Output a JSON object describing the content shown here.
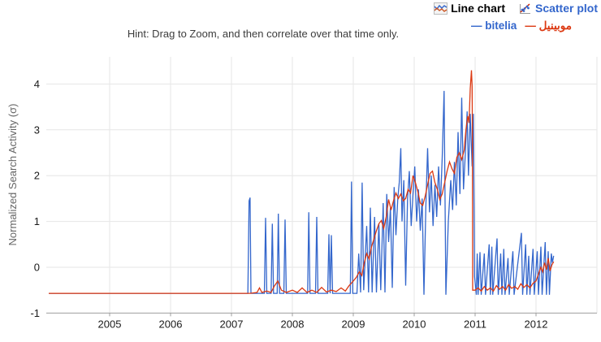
{
  "header": {
    "line_chart_label": "Line chart",
    "scatter_plot_label": "Scatter plot"
  },
  "legend": {
    "items": [
      {
        "dash": "—",
        "label": "bitelia",
        "color": "#3366cc"
      },
      {
        "dash": "—",
        "label": "موبينيل",
        "color": "#dc3912"
      }
    ]
  },
  "hint": "Hint: Drag to Zoom, and then correlate over that time only.",
  "colors": {
    "series_blue": "#3366cc",
    "series_red": "#dc3912",
    "gridline": "#e6e6e6",
    "axis_line": "#9e9e9e",
    "tick_label": "#1a1a1a",
    "axis_title": "#666666",
    "link_blue": "#3366cc",
    "hint_text": "#3c3c3c"
  },
  "chart_data": {
    "type": "line",
    "title": "",
    "xlabel": "",
    "ylabel": "Normalized Search Activity (σ)",
    "xlim": [
      2004,
      2013
    ],
    "ylim": [
      -1,
      4.6
    ],
    "xticks": [
      2005,
      2006,
      2007,
      2008,
      2009,
      2010,
      2011,
      2012
    ],
    "yticks": [
      -1,
      0,
      1,
      2,
      3,
      4
    ],
    "grid": true,
    "legend_position": "top-right",
    "series": [
      {
        "name": "bitelia",
        "color": "#3366cc",
        "points": [
          [
            2004.0,
            -0.57
          ],
          [
            2004.5,
            -0.57
          ],
          [
            2005.0,
            -0.57
          ],
          [
            2005.5,
            -0.57
          ],
          [
            2006.0,
            -0.57
          ],
          [
            2006.5,
            -0.57
          ],
          [
            2007.0,
            -0.57
          ],
          [
            2007.27,
            -0.57
          ],
          [
            2007.29,
            1.45
          ],
          [
            2007.305,
            1.52
          ],
          [
            2007.32,
            -0.57
          ],
          [
            2007.54,
            -0.57
          ],
          [
            2007.56,
            1.08
          ],
          [
            2007.58,
            -0.57
          ],
          [
            2007.65,
            -0.57
          ],
          [
            2007.67,
            0.95
          ],
          [
            2007.69,
            -0.57
          ],
          [
            2007.75,
            -0.57
          ],
          [
            2007.77,
            1.17
          ],
          [
            2007.79,
            -0.57
          ],
          [
            2007.86,
            -0.57
          ],
          [
            2007.88,
            1.04
          ],
          [
            2007.9,
            -0.57
          ],
          [
            2008.25,
            -0.57
          ],
          [
            2008.27,
            1.2
          ],
          [
            2008.29,
            -0.57
          ],
          [
            2008.38,
            -0.57
          ],
          [
            2008.4,
            1.1
          ],
          [
            2008.42,
            -0.57
          ],
          [
            2008.58,
            -0.57
          ],
          [
            2008.6,
            0.72
          ],
          [
            2008.62,
            -0.57
          ],
          [
            2008.64,
            0.7
          ],
          [
            2008.66,
            -0.57
          ],
          [
            2008.95,
            -0.57
          ],
          [
            2008.97,
            1.87
          ],
          [
            2008.99,
            -0.57
          ],
          [
            2009.06,
            -0.57
          ],
          [
            2009.09,
            0.3
          ],
          [
            2009.12,
            -0.55
          ],
          [
            2009.145,
            1.85
          ],
          [
            2009.17,
            -0.5
          ],
          [
            2009.22,
            0.9
          ],
          [
            2009.25,
            -0.55
          ],
          [
            2009.28,
            1.3
          ],
          [
            2009.31,
            -0.55
          ],
          [
            2009.35,
            1.1
          ],
          [
            2009.38,
            -0.55
          ],
          [
            2009.42,
            0.95
          ],
          [
            2009.45,
            -0.5
          ],
          [
            2009.49,
            1.4
          ],
          [
            2009.52,
            -0.55
          ],
          [
            2009.55,
            1.6
          ],
          [
            2009.58,
            0.55
          ],
          [
            2009.61,
            1.3
          ],
          [
            2009.64,
            -0.45
          ],
          [
            2009.67,
            1.75
          ],
          [
            2009.7,
            0.7
          ],
          [
            2009.73,
            1.5
          ],
          [
            2009.755,
            1.85
          ],
          [
            2009.78,
            2.6
          ],
          [
            2009.8,
            1.0
          ],
          [
            2009.83,
            1.9
          ],
          [
            2009.86,
            -0.4
          ],
          [
            2009.89,
            1.5
          ],
          [
            2009.92,
            2.1
          ],
          [
            2009.95,
            0.9
          ],
          [
            2009.98,
            1.6
          ],
          [
            2010.01,
            2.2
          ],
          [
            2010.04,
            1.0
          ],
          [
            2010.07,
            1.7
          ],
          [
            2010.1,
            0.8
          ],
          [
            2010.13,
            1.5
          ],
          [
            2010.16,
            -0.6
          ],
          [
            2010.19,
            1.3
          ],
          [
            2010.22,
            2.6
          ],
          [
            2010.25,
            1.2
          ],
          [
            2010.28,
            2.0
          ],
          [
            2010.31,
            0.9
          ],
          [
            2010.34,
            1.8
          ],
          [
            2010.37,
            1.1
          ],
          [
            2010.4,
            2.2
          ],
          [
            2010.43,
            1.35
          ],
          [
            2010.46,
            2.4
          ],
          [
            2010.49,
            3.85
          ],
          [
            2010.52,
            -0.6
          ],
          [
            2010.56,
            1.0
          ],
          [
            2010.6,
            1.9
          ],
          [
            2010.63,
            1.25
          ],
          [
            2010.66,
            2.3
          ],
          [
            2010.69,
            1.35
          ],
          [
            2010.72,
            2.95
          ],
          [
            2010.75,
            1.6
          ],
          [
            2010.78,
            3.7
          ],
          [
            2010.81,
            1.7
          ],
          [
            2010.84,
            2.5
          ],
          [
            2010.87,
            3.4
          ],
          [
            2010.89,
            2.0
          ],
          [
            2010.92,
            3.35
          ],
          [
            2010.95,
            2.2
          ],
          [
            2010.97,
            3.35
          ],
          [
            2010.99,
            -0.2
          ],
          [
            2011.02,
            -0.6
          ],
          [
            2011.035,
            0.3
          ],
          [
            2011.05,
            -0.6
          ],
          [
            2011.08,
            0.33
          ],
          [
            2011.1,
            -0.6
          ],
          [
            2011.15,
            0.3
          ],
          [
            2011.17,
            -0.6
          ],
          [
            2011.23,
            0.5
          ],
          [
            2011.25,
            -0.6
          ],
          [
            2011.275,
            0.45
          ],
          [
            2011.29,
            -0.6
          ],
          [
            2011.36,
            0.63
          ],
          [
            2011.38,
            -0.6
          ],
          [
            2011.42,
            0.3
          ],
          [
            2011.44,
            -0.6
          ],
          [
            2011.47,
            0.4
          ],
          [
            2011.49,
            -0.6
          ],
          [
            2011.54,
            0.2
          ],
          [
            2011.56,
            -0.6
          ],
          [
            2011.62,
            0.35
          ],
          [
            2011.64,
            -0.6
          ],
          [
            2011.76,
            0.75
          ],
          [
            2011.78,
            -0.6
          ],
          [
            2011.83,
            0.5
          ],
          [
            2011.85,
            -0.6
          ],
          [
            2011.88,
            0.25
          ],
          [
            2011.9,
            -0.6
          ],
          [
            2011.95,
            0.4
          ],
          [
            2011.97,
            -0.6
          ],
          [
            2012.02,
            0.35
          ],
          [
            2012.04,
            -0.6
          ],
          [
            2012.08,
            0.45
          ],
          [
            2012.1,
            -0.6
          ],
          [
            2012.15,
            0.55
          ],
          [
            2012.17,
            -0.6
          ],
          [
            2012.2,
            0.35
          ],
          [
            2012.22,
            -0.6
          ],
          [
            2012.25,
            0.3
          ],
          [
            2012.27,
            0.1
          ],
          [
            2012.29,
            0.25
          ]
        ]
      },
      {
        "name": "موبينيل",
        "color": "#dc3912",
        "points": [
          [
            2004.0,
            -0.57
          ],
          [
            2004.5,
            -0.57
          ],
          [
            2005.0,
            -0.57
          ],
          [
            2005.5,
            -0.57
          ],
          [
            2006.0,
            -0.57
          ],
          [
            2006.5,
            -0.57
          ],
          [
            2007.0,
            -0.57
          ],
          [
            2007.3,
            -0.57
          ],
          [
            2007.42,
            -0.55
          ],
          [
            2007.46,
            -0.45
          ],
          [
            2007.5,
            -0.55
          ],
          [
            2007.58,
            -0.52
          ],
          [
            2007.65,
            -0.55
          ],
          [
            2007.7,
            -0.42
          ],
          [
            2007.76,
            -0.3
          ],
          [
            2007.82,
            -0.5
          ],
          [
            2007.9,
            -0.55
          ],
          [
            2008.0,
            -0.5
          ],
          [
            2008.08,
            -0.55
          ],
          [
            2008.16,
            -0.45
          ],
          [
            2008.24,
            -0.55
          ],
          [
            2008.32,
            -0.5
          ],
          [
            2008.4,
            -0.55
          ],
          [
            2008.48,
            -0.44
          ],
          [
            2008.56,
            -0.54
          ],
          [
            2008.64,
            -0.5
          ],
          [
            2008.72,
            -0.53
          ],
          [
            2008.8,
            -0.45
          ],
          [
            2008.87,
            -0.52
          ],
          [
            2008.93,
            -0.4
          ],
          [
            2009.0,
            -0.3
          ],
          [
            2009.05,
            -0.22
          ],
          [
            2009.1,
            -0.1
          ],
          [
            2009.14,
            -0.18
          ],
          [
            2009.18,
            0.1
          ],
          [
            2009.22,
            0.3
          ],
          [
            2009.26,
            0.18
          ],
          [
            2009.3,
            0.45
          ],
          [
            2009.34,
            0.62
          ],
          [
            2009.38,
            0.8
          ],
          [
            2009.42,
            0.95
          ],
          [
            2009.46,
            1.02
          ],
          [
            2009.5,
            0.85
          ],
          [
            2009.54,
            1.1
          ],
          [
            2009.58,
            1.48
          ],
          [
            2009.62,
            1.25
          ],
          [
            2009.66,
            1.45
          ],
          [
            2009.7,
            1.62
          ],
          [
            2009.74,
            1.5
          ],
          [
            2009.78,
            1.6
          ],
          [
            2009.82,
            1.45
          ],
          [
            2009.86,
            1.5
          ],
          [
            2009.9,
            1.7
          ],
          [
            2009.94,
            1.62
          ],
          [
            2009.98,
            2.0
          ],
          [
            2010.02,
            1.85
          ],
          [
            2010.06,
            1.65
          ],
          [
            2010.1,
            1.4
          ],
          [
            2010.14,
            1.35
          ],
          [
            2010.18,
            1.55
          ],
          [
            2010.22,
            1.8
          ],
          [
            2010.26,
            2.05
          ],
          [
            2010.3,
            2.1
          ],
          [
            2010.34,
            1.85
          ],
          [
            2010.38,
            1.7
          ],
          [
            2010.42,
            1.48
          ],
          [
            2010.46,
            1.6
          ],
          [
            2010.5,
            1.85
          ],
          [
            2010.54,
            2.1
          ],
          [
            2010.58,
            2.3
          ],
          [
            2010.62,
            2.15
          ],
          [
            2010.66,
            2.05
          ],
          [
            2010.7,
            2.4
          ],
          [
            2010.74,
            2.5
          ],
          [
            2010.78,
            2.35
          ],
          [
            2010.82,
            2.55
          ],
          [
            2010.85,
            3.0
          ],
          [
            2010.88,
            3.3
          ],
          [
            2010.9,
            3.15
          ],
          [
            2010.92,
            3.9
          ],
          [
            2010.94,
            4.3
          ],
          [
            2010.95,
            3.95
          ],
          [
            2010.955,
            3.1
          ],
          [
            2010.96,
            -0.5
          ],
          [
            2011.0,
            -0.5
          ],
          [
            2011.05,
            -0.45
          ],
          [
            2011.1,
            -0.52
          ],
          [
            2011.15,
            -0.42
          ],
          [
            2011.2,
            -0.5
          ],
          [
            2011.25,
            -0.45
          ],
          [
            2011.3,
            -0.52
          ],
          [
            2011.35,
            -0.4
          ],
          [
            2011.4,
            -0.48
          ],
          [
            2011.45,
            -0.42
          ],
          [
            2011.5,
            -0.5
          ],
          [
            2011.55,
            -0.38
          ],
          [
            2011.6,
            -0.46
          ],
          [
            2011.65,
            -0.42
          ],
          [
            2011.7,
            -0.48
          ],
          [
            2011.75,
            -0.36
          ],
          [
            2011.8,
            -0.44
          ],
          [
            2011.85,
            -0.38
          ],
          [
            2011.9,
            -0.45
          ],
          [
            2011.95,
            -0.35
          ],
          [
            2012.0,
            -0.3
          ],
          [
            2012.04,
            -0.15
          ],
          [
            2012.08,
            0.0
          ],
          [
            2012.11,
            -0.1
          ],
          [
            2012.14,
            0.1
          ],
          [
            2012.17,
            -0.05
          ],
          [
            2012.2,
            0.2
          ],
          [
            2012.23,
            -0.08
          ],
          [
            2012.26,
            0.05
          ],
          [
            2012.29,
            0.12
          ]
        ]
      }
    ]
  }
}
